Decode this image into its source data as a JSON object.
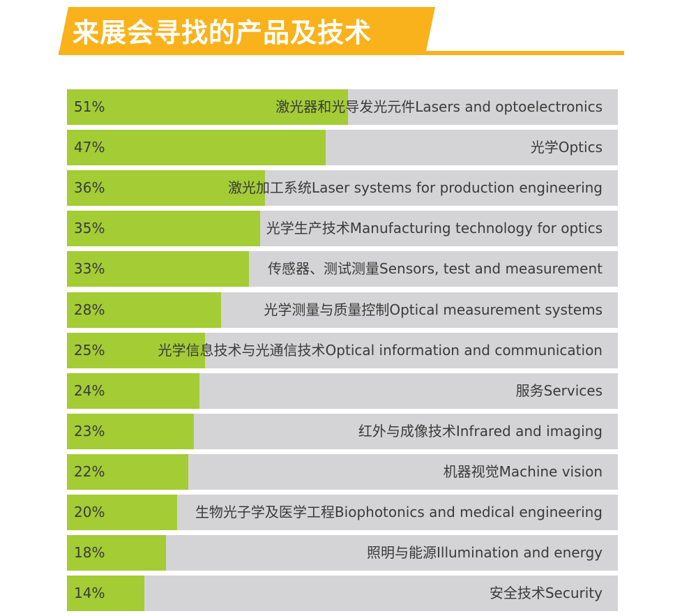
{
  "header": {
    "title": "来展会寻找的产品及技术",
    "accent_color": "#f9b21b",
    "bar_color": "#a3cc35",
    "track_color": "#d4d4d6"
  },
  "chart_data": {
    "type": "bar",
    "orientation": "horizontal",
    "title": "来展会寻找的产品及技术",
    "xlim": [
      0,
      100
    ],
    "categories": [
      "激光器和光导发光元件Lasers and optoelectronics",
      "光学Optics",
      "激光加工系统Laser systems for production engineering",
      "光学生产技术Manufacturing technology for optics",
      "传感器、测试测量Sensors, test and measurement",
      "光学测量与质量控制Optical measurement systems",
      "光学信息技术与光通信技术Optical information and communication",
      "服务Services",
      "红外与成像技术Infrared and imaging",
      "机器视觉Machine vision",
      "生物光子学及医学工程Biophotonics and medical engineering",
      "照明与能源Illumination and energy",
      "安全技术Security"
    ],
    "values": [
      51,
      47,
      36,
      35,
      33,
      28,
      25,
      24,
      23,
      22,
      20,
      18,
      14
    ],
    "value_labels": [
      "51%",
      "47%",
      "36%",
      "35%",
      "33%",
      "28%",
      "25%",
      "24%",
      "23%",
      "22%",
      "20%",
      "18%",
      "14%"
    ]
  }
}
